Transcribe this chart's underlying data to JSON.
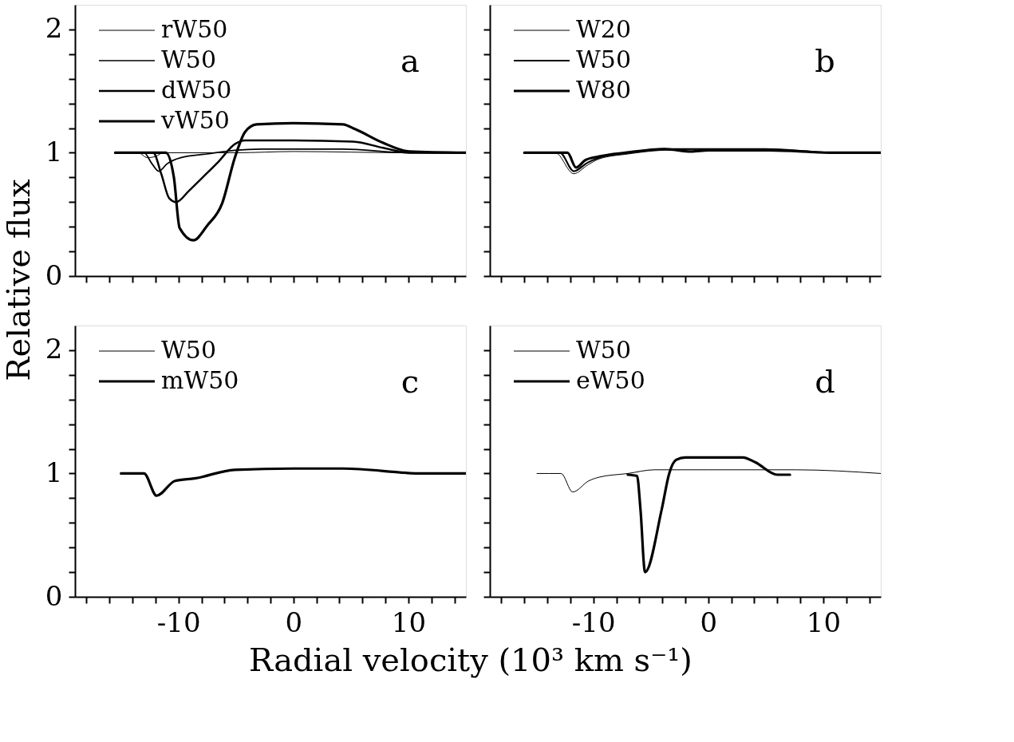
{
  "chart_data": [
    {
      "type": "line",
      "ylabel": "Relative flux",
      "xlim": [
        -19,
        15
      ],
      "ylim": [
        0,
        2.2
      ],
      "xticks": [
        {
          "value": -18,
          "label": null
        },
        {
          "value": -16,
          "label": null
        },
        {
          "value": -14,
          "label": null
        },
        {
          "value": -12,
          "label": null
        },
        -10,
        {
          "value": -8,
          "label": null
        },
        {
          "value": -6,
          "label": null
        },
        {
          "value": -4,
          "label": null
        },
        {
          "value": -2,
          "label": null
        },
        0,
        {
          "value": 2,
          "label": null
        },
        {
          "value": 4,
          "label": null
        },
        {
          "value": 6,
          "label": null
        },
        {
          "value": 8,
          "label": null
        },
        10,
        {
          "value": 12,
          "label": null
        },
        {
          "value": 14,
          "label": null
        }
      ],
      "yticks": [
        0,
        {
          "value": 0.2,
          "label": null
        },
        {
          "value": 0.4,
          "label": null
        },
        {
          "value": 0.6,
          "label": null
        },
        {
          "value": 0.8,
          "label": null
        },
        1,
        {
          "value": 1.2,
          "label": null
        },
        {
          "value": 1.4,
          "label": null
        },
        {
          "value": 1.6,
          "label": null
        },
        {
          "value": 1.8,
          "label": null
        },
        2
      ],
      "tick_labels": "y",
      "grid": false,
      "legend": "top left",
      "annotations": [
        "a"
      ],
      "series": [
        {
          "name": "rW50",
          "color": "#000000",
          "x": [
            -15.5,
            -13.5,
            -12.7,
            -12.0,
            -11.3,
            -5,
            0,
            10,
            15
          ],
          "values": [
            1.0,
            1.0,
            0.96,
            0.97,
            1.0,
            1.0,
            1.01,
            1.0,
            1.0
          ]
        },
        {
          "name": "W50",
          "color": "#000000",
          "x": [
            -15.5,
            -13.0,
            -12.3,
            -11.7,
            -11.0,
            -9.8,
            -7.5,
            -5.1,
            -2.8,
            4.3,
            10,
            15
          ],
          "values": [
            1.0,
            1.0,
            0.91,
            0.85,
            0.91,
            0.96,
            0.99,
            1.02,
            1.03,
            1.03,
            1.0,
            1.0
          ]
        },
        {
          "name": "dW50",
          "color": "#000000",
          "x": [
            -15.5,
            -12.2,
            -11.5,
            -10.8,
            -10.2,
            -9.1,
            -7.9,
            -6.5,
            -5.1,
            -4.2,
            0,
            5.2,
            7.8,
            10.1,
            15
          ],
          "values": [
            1.0,
            1.0,
            0.83,
            0.63,
            0.6,
            0.69,
            0.8,
            0.93,
            1.07,
            1.1,
            1.1,
            1.09,
            1.04,
            1.0,
            1.0
          ]
        },
        {
          "name": "vW50",
          "color": "#000000",
          "x": [
            -15.5,
            -11.1,
            -10.4,
            -9.9,
            -8.7,
            -7.5,
            -6.2,
            -5.1,
            -4.2,
            -3.2,
            0,
            4.3,
            5.4,
            7.8,
            10.1,
            15
          ],
          "values": [
            1.0,
            1.0,
            0.8,
            0.39,
            0.29,
            0.41,
            0.59,
            0.96,
            1.17,
            1.23,
            1.24,
            1.23,
            1.19,
            1.08,
            1.01,
            1.0
          ]
        }
      ]
    },
    {
      "type": "line",
      "xlim": [
        -19,
        15
      ],
      "ylim": [
        0,
        2.2
      ],
      "xticks": [
        {
          "value": -18,
          "label": null
        },
        {
          "value": -16,
          "label": null
        },
        {
          "value": -14,
          "label": null
        },
        {
          "value": -12,
          "label": null
        },
        -10,
        {
          "value": -8,
          "label": null
        },
        {
          "value": -6,
          "label": null
        },
        {
          "value": -4,
          "label": null
        },
        {
          "value": -2,
          "label": null
        },
        0,
        {
          "value": 2,
          "label": null
        },
        {
          "value": 4,
          "label": null
        },
        {
          "value": 6,
          "label": null
        },
        {
          "value": 8,
          "label": null
        },
        10,
        {
          "value": 12,
          "label": null
        },
        {
          "value": 14,
          "label": null
        }
      ],
      "yticks": [
        0,
        {
          "value": 0.2,
          "label": null
        },
        {
          "value": 0.4,
          "label": null
        },
        {
          "value": 0.6,
          "label": null
        },
        {
          "value": 0.8,
          "label": null
        },
        1,
        {
          "value": 1.2,
          "label": null
        },
        {
          "value": 1.4,
          "label": null
        },
        {
          "value": 1.6,
          "label": null
        },
        {
          "value": 1.8,
          "label": null
        },
        2
      ],
      "tick_labels": false,
      "grid": false,
      "legend": "top left",
      "annotations": [
        "b"
      ],
      "series": [
        {
          "name": "W20",
          "color": "#000000",
          "x": [
            -16,
            -13.3,
            -11.7,
            -10.5,
            -9.5,
            -7,
            -4,
            0,
            5,
            11,
            15
          ],
          "values": [
            1.0,
            1.0,
            0.83,
            0.9,
            0.95,
            0.99,
            1.02,
            1.03,
            1.03,
            1.0,
            1.0
          ]
        },
        {
          "name": "W50",
          "color": "#000000",
          "x": [
            -16,
            -12.9,
            -11.7,
            -10.5,
            -9.5,
            -7,
            -4,
            0,
            5,
            11,
            15
          ],
          "values": [
            1.0,
            1.0,
            0.85,
            0.92,
            0.96,
            1.0,
            1.03,
            1.03,
            1.03,
            1.0,
            1.0
          ]
        },
        {
          "name": "W80",
          "color": "#000000",
          "x": [
            -16,
            -12.25,
            -11.5,
            -10.7,
            -9.5,
            -7.2,
            -3.8,
            -1.5,
            0,
            5.3,
            11,
            15
          ],
          "values": [
            1.0,
            1.0,
            0.88,
            0.94,
            0.97,
            1.0,
            1.03,
            1.01,
            1.02,
            1.02,
            1.0,
            1.0
          ]
        }
      ]
    },
    {
      "type": "line",
      "xlabel": "Radial velocity (10³ km s⁻¹)",
      "xlim": [
        -19,
        15
      ],
      "ylim": [
        0,
        2.2
      ],
      "xticks": [
        {
          "value": -18,
          "label": null
        },
        {
          "value": -16,
          "label": null
        },
        {
          "value": -14,
          "label": null
        },
        {
          "value": -12,
          "label": null
        },
        -10,
        {
          "value": -8,
          "label": null
        },
        {
          "value": -6,
          "label": null
        },
        {
          "value": -4,
          "label": null
        },
        {
          "value": -2,
          "label": null
        },
        0,
        {
          "value": 2,
          "label": null
        },
        {
          "value": 4,
          "label": null
        },
        {
          "value": 6,
          "label": null
        },
        {
          "value": 8,
          "label": null
        },
        10,
        {
          "value": 12,
          "label": null
        },
        {
          "value": 14,
          "label": null
        }
      ],
      "yticks": [
        0,
        {
          "value": 0.2,
          "label": null
        },
        {
          "value": 0.4,
          "label": null
        },
        {
          "value": 0.6,
          "label": null
        },
        {
          "value": 0.8,
          "label": null
        },
        1,
        {
          "value": 1.2,
          "label": null
        },
        {
          "value": 1.4,
          "label": null
        },
        {
          "value": 1.6,
          "label": null
        },
        {
          "value": 1.8,
          "label": null
        },
        2
      ],
      "grid": false,
      "legend": "top left",
      "annotations": [
        "c"
      ],
      "series": [
        {
          "name": "W50",
          "color": "#000000"
        },
        {
          "name": "mW50",
          "color": "#000000",
          "x": [
            -15.0,
            -13.0,
            -11.9,
            -10.3,
            -8.6,
            -5.1,
            0,
            4.3,
            11.3,
            15
          ],
          "values": [
            1.0,
            1.0,
            0.82,
            0.94,
            0.96,
            1.03,
            1.04,
            1.04,
            1.0,
            1.0
          ]
        }
      ]
    },
    {
      "type": "line",
      "xlim": [
        -19,
        15
      ],
      "ylim": [
        0,
        2.2
      ],
      "xticks": [
        {
          "value": -18,
          "label": null
        },
        {
          "value": -16,
          "label": null
        },
        {
          "value": -14,
          "label": null
        },
        {
          "value": -12,
          "label": null
        },
        -10,
        {
          "value": -8,
          "label": null
        },
        {
          "value": -6,
          "label": null
        },
        {
          "value": -4,
          "label": null
        },
        {
          "value": -2,
          "label": null
        },
        0,
        {
          "value": 2,
          "label": null
        },
        {
          "value": 4,
          "label": null
        },
        {
          "value": 6,
          "label": null
        },
        {
          "value": 8,
          "label": null
        },
        10,
        {
          "value": 12,
          "label": null
        },
        {
          "value": 14,
          "label": null
        }
      ],
      "yticks": [
        0,
        {
          "value": 0.2,
          "label": null
        },
        {
          "value": 0.4,
          "label": null
        },
        {
          "value": 0.6,
          "label": null
        },
        {
          "value": 0.8,
          "label": null
        },
        1,
        {
          "value": 1.2,
          "label": null
        },
        {
          "value": 1.4,
          "label": null
        },
        {
          "value": 1.6,
          "label": null
        },
        {
          "value": 1.8,
          "label": null
        },
        2
      ],
      "tick_labels": "x",
      "grid": false,
      "legend": "top left",
      "annotations": [
        "d"
      ],
      "series": [
        {
          "name": "W50",
          "color": "#000000",
          "x": [
            -14.9,
            -12.8,
            -11.8,
            -10.4,
            -9.5,
            -7.0,
            -4.7,
            0,
            7.6,
            15
          ],
          "values": [
            1.0,
            1.0,
            0.85,
            0.94,
            0.97,
            1.0,
            1.03,
            1.03,
            1.03,
            1.0
          ]
        },
        {
          "name": "eW50",
          "color": "#000000",
          "x": [
            -7.0,
            -6.2,
            -5.9,
            -5.5,
            -4.05,
            -3.4,
            -2.8,
            -2.0,
            3.0,
            4.1,
            6.0,
            7.1
          ],
          "values": [
            0.99,
            0.98,
            0.71,
            0.2,
            0.71,
            1.0,
            1.11,
            1.13,
            1.13,
            1.09,
            0.99,
            0.99
          ]
        }
      ]
    }
  ]
}
